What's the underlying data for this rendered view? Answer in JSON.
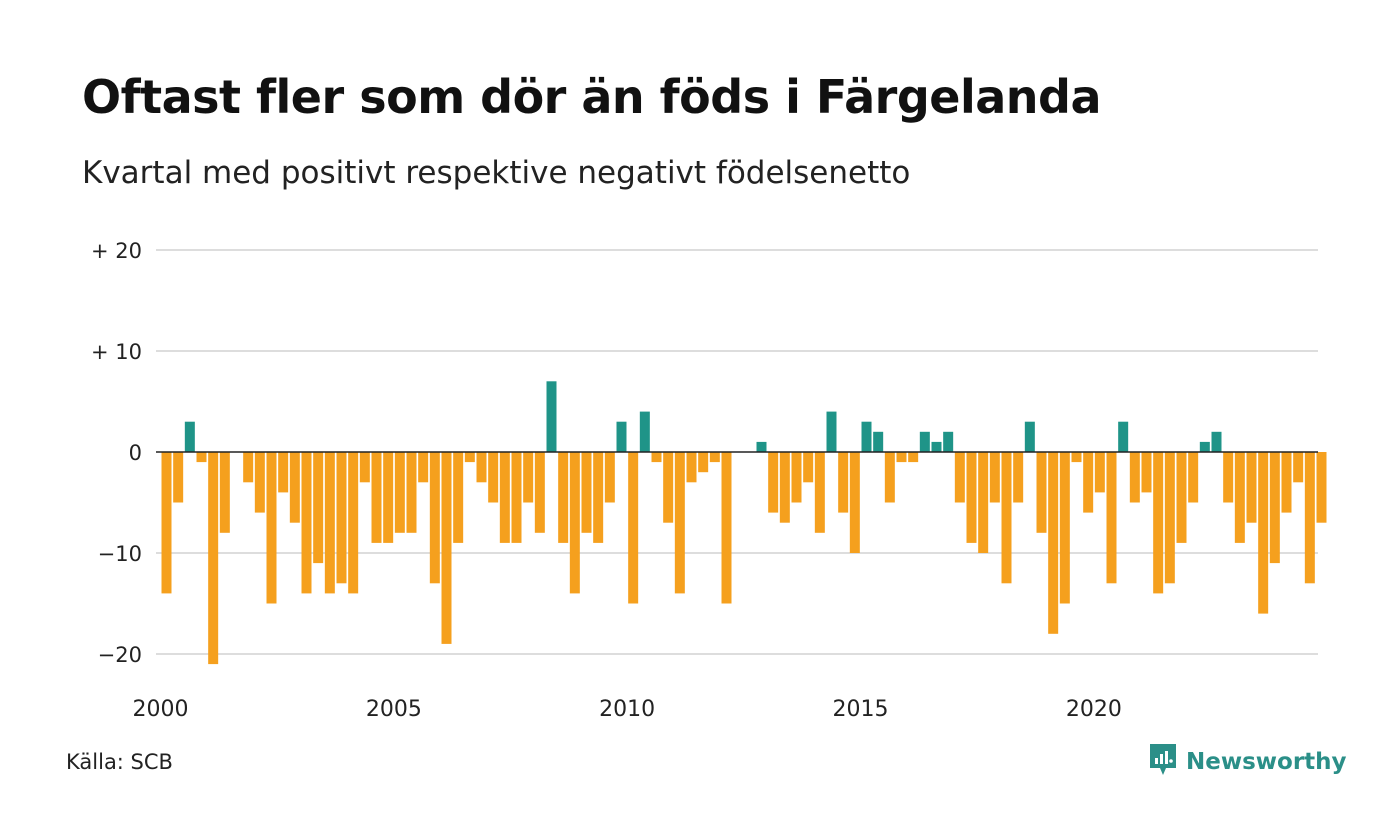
{
  "title": "Oftast fler som dör än föds i Färgelanda",
  "subtitle": "Kvartal med positivt respektive negativt födelsenetto",
  "source": "Källa: SCB",
  "brand": {
    "name": "Newsworthy",
    "icon": "newsworthy-logo-icon"
  },
  "colors": {
    "positive": "#1f9488",
    "negative": "#f5a01e",
    "grid": "#dddddd",
    "zero_line": "#222222"
  },
  "chart_data": {
    "type": "bar",
    "title": "Oftast fler som dör än föds i Färgelanda",
    "subtitle": "Kvartal med positivt respektive negativt födelsenetto",
    "xlabel": "",
    "ylabel": "",
    "ylim": [
      -23,
      20
    ],
    "y_ticks": [
      {
        "value": 20,
        "label": "+ 20"
      },
      {
        "value": 10,
        "label": "+ 10"
      },
      {
        "value": 0,
        "label": "0"
      },
      {
        "value": -10,
        "label": "−10"
      },
      {
        "value": -20,
        "label": "−20"
      }
    ],
    "x_ticks": [
      "2000",
      "2005",
      "2010",
      "2015",
      "2020"
    ],
    "start_year": 2000,
    "grid": true,
    "legend": "none",
    "values": [
      -14,
      -5,
      3,
      -1,
      -21,
      -8,
      0,
      -3,
      -6,
      -15,
      -4,
      -7,
      -14,
      -11,
      -14,
      -13,
      -14,
      -3,
      -9,
      -9,
      -8,
      -8,
      -3,
      -13,
      -19,
      -9,
      -1,
      -3,
      -5,
      -9,
      -9,
      -5,
      -8,
      7,
      -9,
      -14,
      -8,
      -9,
      -5,
      3,
      -15,
      4,
      -1,
      -7,
      -14,
      -3,
      -2,
      -1,
      -15,
      0,
      0,
      1,
      -6,
      -7,
      -5,
      -3,
      -8,
      4,
      -6,
      -10,
      3,
      2,
      -5,
      -1,
      -1,
      2,
      1,
      2,
      -5,
      -9,
      -10,
      -5,
      -13,
      -5,
      3,
      -8,
      -18,
      -15,
      -1,
      -6,
      -4,
      -13,
      3,
      -5,
      -4,
      -14,
      -13,
      -9,
      -5,
      1,
      2,
      -5,
      -9,
      -7,
      -16,
      -11,
      -6,
      -3,
      -13,
      -7
    ]
  }
}
